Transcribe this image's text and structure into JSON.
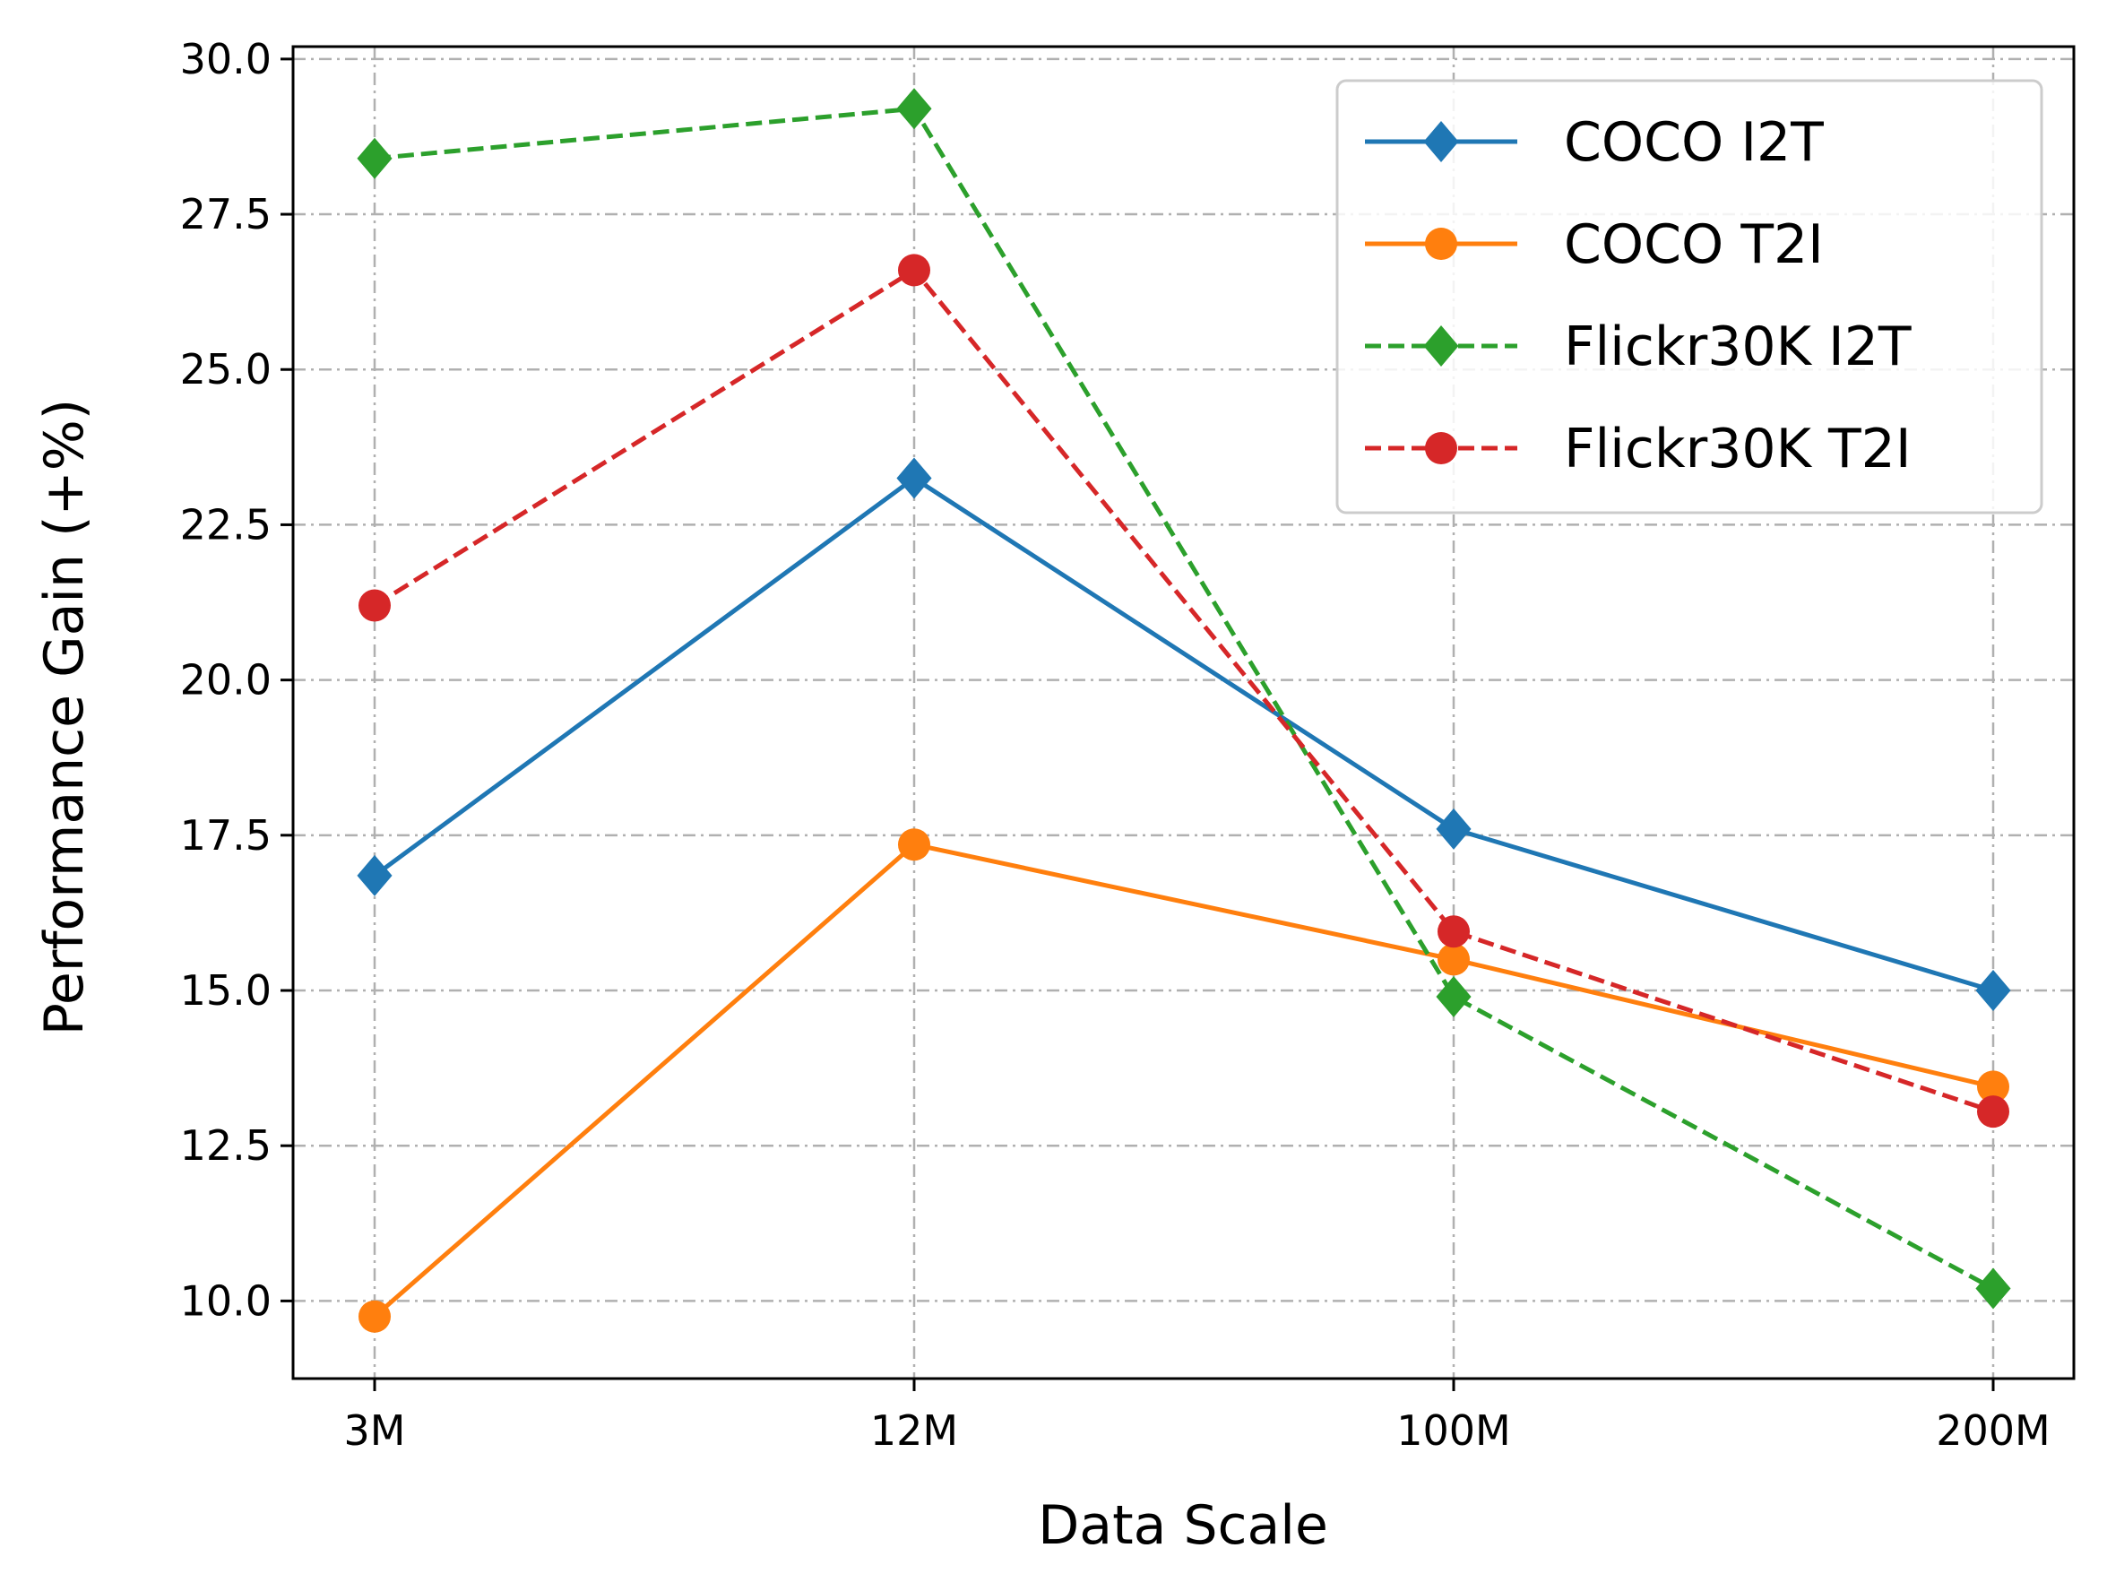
{
  "chart_data": {
    "type": "line",
    "title": "",
    "xlabel": "Data Scale",
    "ylabel": "Performance Gain (+%)",
    "categories": [
      "3M",
      "12M",
      "100M",
      "200M"
    ],
    "ylim": [
      8.75,
      30.2
    ],
    "yticks": [
      "10.0",
      "12.5",
      "15.0",
      "17.5",
      "20.0",
      "22.5",
      "25.0",
      "27.5",
      "30.0"
    ],
    "grid": true,
    "legend_position": "top-right",
    "series": [
      {
        "name": "COCO I2T",
        "values": [
          16.85,
          23.25,
          17.6,
          15.0
        ],
        "color": "#1f77b4",
        "style": "solid",
        "marker": "diamond"
      },
      {
        "name": "COCO T2I",
        "values": [
          9.75,
          17.35,
          15.5,
          13.45
        ],
        "color": "#ff7f0e",
        "style": "solid",
        "marker": "circle"
      },
      {
        "name": "Flickr30K I2T",
        "values": [
          28.4,
          29.2,
          14.9,
          10.2
        ],
        "color": "#2ca02c",
        "style": "dashed",
        "marker": "diamond"
      },
      {
        "name": "Flickr30K T2I",
        "values": [
          21.2,
          26.6,
          15.95,
          13.05
        ],
        "color": "#d62728",
        "style": "dashed",
        "marker": "circle"
      }
    ]
  }
}
